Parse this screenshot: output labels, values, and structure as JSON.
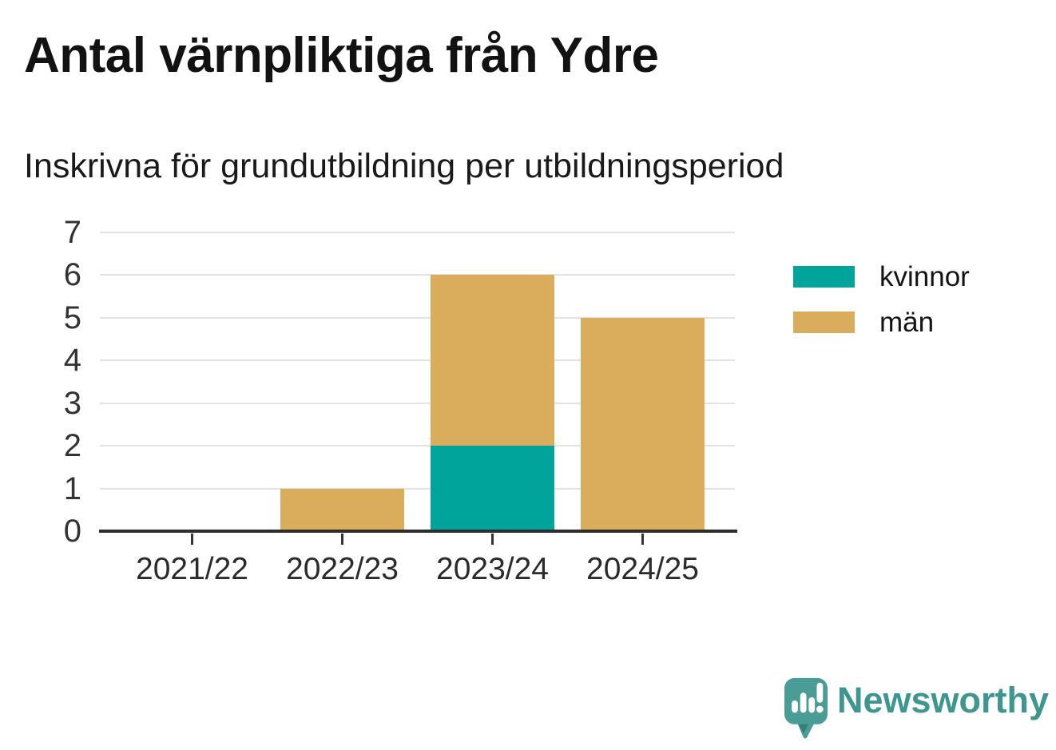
{
  "chart_data": {
    "type": "bar",
    "stacked": true,
    "title": "Antal värnpliktiga från Ydre",
    "subtitle": "Inskrivna för grundutbildning per utbildningsperiod",
    "categories": [
      "2021/22",
      "2022/23",
      "2023/24",
      "2024/25"
    ],
    "series": [
      {
        "name": "kvinnor",
        "color": "#00a49a",
        "values": [
          0,
          0,
          2,
          0
        ]
      },
      {
        "name": "män",
        "color": "#d9ad5b",
        "values": [
          0,
          1,
          4,
          5
        ]
      }
    ],
    "totals": [
      0,
      1,
      6,
      5
    ],
    "xlabel": "",
    "ylabel": "",
    "ylim": [
      0,
      7
    ],
    "yticks": [
      0,
      1,
      2,
      3,
      4,
      5,
      6,
      7
    ],
    "grid": true,
    "legend_position": "right"
  },
  "branding": {
    "logo_text": "Newsworthy",
    "logo_color": "#3e968e",
    "logo_icon": "speech-bubble-bar-chart-icon",
    "logo_icon_color": "#4a9d97"
  }
}
